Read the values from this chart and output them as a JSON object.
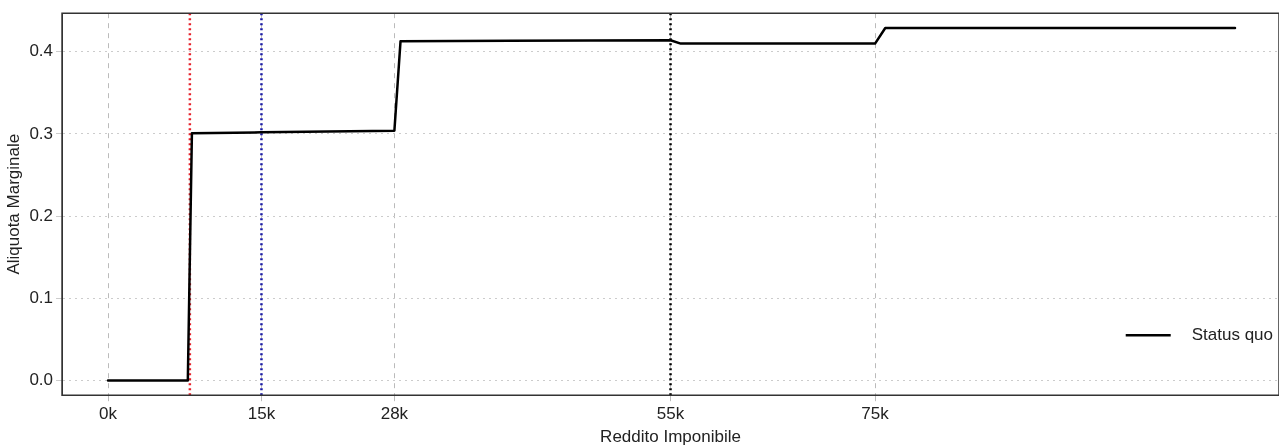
{
  "chart_data": {
    "type": "line",
    "xlabel": "Reddito Imponibile",
    "ylabel": "Aliquota Marginale",
    "x": [
      0,
      7.8,
      8.2,
      15,
      28,
      28.6,
      55,
      56,
      75,
      76,
      110.2
    ],
    "series": [
      {
        "name": "Status quo",
        "color": "#000000",
        "values": [
          0,
          0,
          0.301,
          0.302,
          0.304,
          0.413,
          0.414,
          0.41,
          0.41,
          0.429,
          0.429
        ]
      }
    ],
    "xlim": [
      -4.5,
      114.5
    ],
    "xticks": [
      {
        "value": 0,
        "label": "0k"
      },
      {
        "value": 15,
        "label": "15k"
      },
      {
        "value": 28,
        "label": "28k"
      },
      {
        "value": 55,
        "label": "55k"
      },
      {
        "value": 75,
        "label": "75k"
      }
    ],
    "ylim": [
      -0.018,
      0.447
    ],
    "yticks": [
      {
        "value": 0,
        "label": "0.0"
      },
      0.1,
      0.2,
      0.3,
      0.4
    ],
    "ref_lines": [
      {
        "axis": "x",
        "value": 8,
        "color": "#e8202a",
        "line_style": "dotted"
      },
      {
        "axis": "x",
        "value": 15,
        "color": "#1a1aa8",
        "line_style": "dotted"
      },
      {
        "axis": "x",
        "value": 55,
        "color": "#000000",
        "line_style": "dotted"
      }
    ],
    "grid": true,
    "legend": "bottom right",
    "marker": "none",
    "line_style": "solid"
  }
}
